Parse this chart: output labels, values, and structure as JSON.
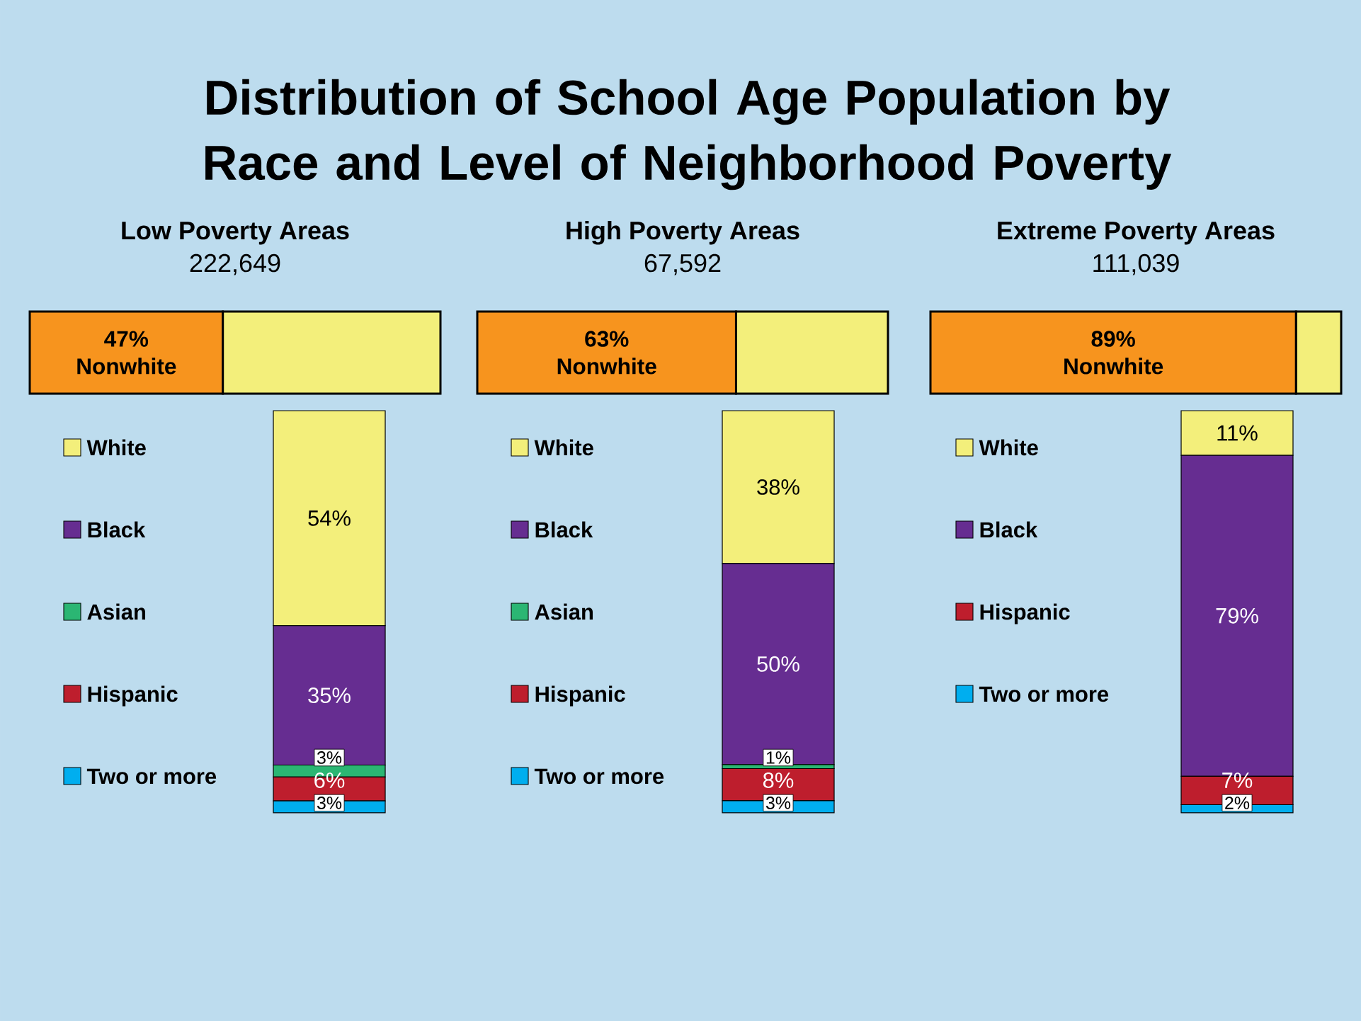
{
  "chart_data": [
    {
      "type": "other",
      "title": "Distribution of School Age Population by Race and Level of Neighborhood Poverty"
    },
    {
      "type": "bar",
      "orientation": "horizontal",
      "stacked": true,
      "title": "Low Poverty Areas",
      "subtitle": "222,649",
      "categories": [
        null
      ],
      "series": [
        {
          "name": "Nonwhite",
          "color": "#f7941e",
          "values": [
            47
          ],
          "value_labels": [
            "47%"
          ]
        },
        {
          "color": "#f3ef7b",
          "values": [
            53
          ]
        }
      ],
      "xlim": [
        0,
        100
      ],
      "tick_labels": false
    },
    {
      "type": "bar",
      "stacked": true,
      "categories": [
        null
      ],
      "series": [
        {
          "name": "Two or more",
          "color": "#00aeef",
          "values": [
            3
          ],
          "value_labels": [
            "3%"
          ]
        },
        {
          "name": "Hispanic",
          "color": "#be1e2d",
          "values": [
            6
          ],
          "value_labels": [
            "6%"
          ]
        },
        {
          "name": "Asian",
          "color": "#2bb673",
          "values": [
            3
          ],
          "value_labels": [
            "3%"
          ]
        },
        {
          "name": "Black",
          "color": "#662d91",
          "values": [
            35
          ],
          "value_labels": [
            "35%"
          ]
        },
        {
          "name": "White",
          "color": "#f3ef7b",
          "values": [
            54
          ],
          "value_labels": [
            "54%"
          ]
        }
      ],
      "ylim": [
        0,
        101
      ],
      "tick_labels": false,
      "legend": "left"
    },
    {
      "type": "bar",
      "orientation": "horizontal",
      "stacked": true,
      "title": "High Poverty Areas",
      "subtitle": "67,592",
      "categories": [
        null
      ],
      "series": [
        {
          "name": "Nonwhite",
          "color": "#f7941e",
          "values": [
            63
          ],
          "value_labels": [
            "63%"
          ]
        },
        {
          "color": "#f3ef7b",
          "values": [
            37
          ]
        }
      ],
      "xlim": [
        0,
        100
      ],
      "tick_labels": false
    },
    {
      "type": "bar",
      "stacked": true,
      "categories": [
        null
      ],
      "series": [
        {
          "name": "Two or more",
          "color": "#00aeef",
          "values": [
            3
          ],
          "value_labels": [
            "3%"
          ]
        },
        {
          "name": "Hispanic",
          "color": "#be1e2d",
          "values": [
            8
          ],
          "value_labels": [
            "8%"
          ]
        },
        {
          "name": "Asian",
          "color": "#2bb673",
          "values": [
            1
          ],
          "value_labels": [
            "1%"
          ]
        },
        {
          "name": "Black",
          "color": "#662d91",
          "values": [
            50
          ],
          "value_labels": [
            "50%"
          ]
        },
        {
          "name": "White",
          "color": "#f3ef7b",
          "values": [
            38
          ],
          "value_labels": [
            "38%"
          ]
        }
      ],
      "ylim": [
        0,
        100
      ],
      "tick_labels": false,
      "legend": "left"
    },
    {
      "type": "bar",
      "orientation": "horizontal",
      "stacked": true,
      "title": "Extreme Poverty Areas",
      "subtitle": "111,039",
      "categories": [
        null
      ],
      "series": [
        {
          "name": "Nonwhite",
          "color": "#f7941e",
          "values": [
            89
          ],
          "value_labels": [
            "89%"
          ]
        },
        {
          "color": "#f3ef7b",
          "values": [
            11
          ]
        }
      ],
      "xlim": [
        0,
        100
      ],
      "tick_labels": false
    },
    {
      "type": "bar",
      "stacked": true,
      "categories": [
        null
      ],
      "series": [
        {
          "name": "Two or more",
          "color": "#00aeef",
          "values": [
            2
          ],
          "value_labels": [
            "2%"
          ]
        },
        {
          "name": "Hispanic",
          "color": "#be1e2d",
          "values": [
            7
          ],
          "value_labels": [
            "7%"
          ]
        },
        {
          "name": "Black",
          "color": "#662d91",
          "values": [
            79
          ],
          "value_labels": [
            "79%"
          ]
        },
        {
          "name": "White",
          "color": "#f3ef7b",
          "values": [
            11
          ],
          "value_labels": [
            "11%"
          ]
        }
      ],
      "ylim": [
        0,
        99
      ],
      "tick_labels": false,
      "legend": "left"
    }
  ]
}
